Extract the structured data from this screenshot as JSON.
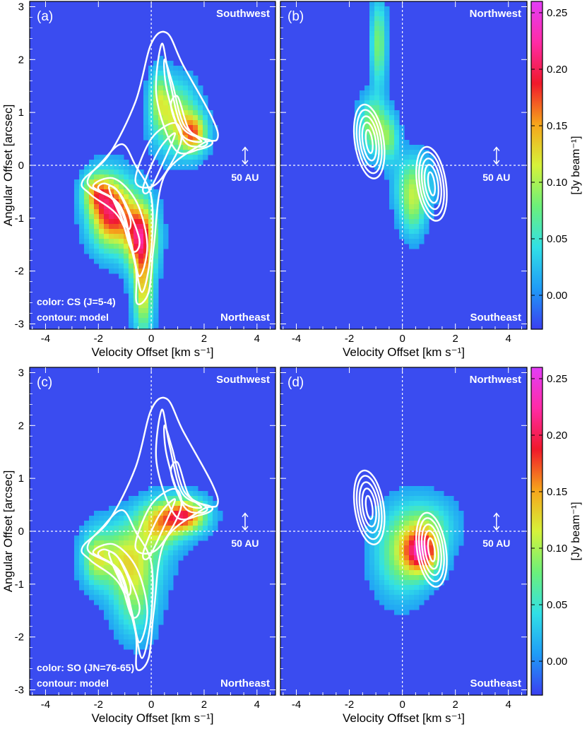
{
  "colors": {
    "background": "#3a4cf0",
    "contour": "#ffffff",
    "guide": "#ffffff",
    "colormap": [
      "#3a3ff0",
      "#1f9cf7",
      "#31e0e6",
      "#6cf07a",
      "#d6f23a",
      "#f6a51b",
      "#f0192b",
      "#ff2ba6",
      "#e23ef7"
    ]
  },
  "chart_data": [
    {
      "id": "a",
      "type": "heatmap",
      "panel_label": "(a)",
      "xlabel": "Velocity Offset [km s⁻¹]",
      "ylabel": "Angular Offset [arcsec]",
      "xlim": [
        -4.6,
        4.7
      ],
      "ylim": [
        -3.1,
        3.1
      ],
      "x_ticks": [
        "-4",
        "-2",
        "0",
        "2",
        "4"
      ],
      "y_ticks": [
        "3",
        "2",
        "1",
        "0",
        "-1",
        "-2",
        "-3"
      ],
      "top_right_label": "Southwest",
      "bottom_right_label": "Northeast",
      "scale_bar_label": "50 AU",
      "legend_lines": [
        "color: CS (J=5-4)",
        "contour: model"
      ],
      "emission": [
        {
          "v": -1.5,
          "a": -0.9,
          "sv": 0.55,
          "sa": 0.45,
          "amp": 0.2
        },
        {
          "v": -0.4,
          "a": -1.35,
          "sv": 0.4,
          "sa": 0.45,
          "amp": 0.19
        },
        {
          "v": -0.3,
          "a": -2.4,
          "sv": 0.25,
          "sa": 0.55,
          "amp": 0.12
        },
        {
          "v": -2.1,
          "a": -0.5,
          "sv": 0.35,
          "sa": 0.25,
          "amp": 0.1
        },
        {
          "v": 0.9,
          "a": 0.9,
          "sv": 0.55,
          "sa": 0.45,
          "amp": 0.11
        },
        {
          "v": 1.6,
          "a": 0.6,
          "sv": 0.35,
          "sa": 0.25,
          "amp": 0.14
        },
        {
          "v": 0.3,
          "a": 1.3,
          "sv": 0.25,
          "sa": 0.35,
          "amp": 0.07
        }
      ]
    },
    {
      "id": "b",
      "type": "heatmap",
      "panel_label": "(b)",
      "xlabel": "Velocity Offset [km s⁻¹]",
      "xlim": [
        -4.6,
        4.7
      ],
      "ylim": [
        -3.1,
        3.1
      ],
      "x_ticks": [
        "-4",
        "-2",
        "0",
        "2",
        "4"
      ],
      "top_right_label": "Northwest",
      "bottom_right_label": "Southeast",
      "scale_bar_label": "50 AU",
      "emission": [
        {
          "v": -0.9,
          "a": 2.3,
          "sv": 0.2,
          "sa": 0.55,
          "amp": 0.085
        },
        {
          "v": -1.1,
          "a": 0.75,
          "sv": 0.35,
          "sa": 0.35,
          "amp": 0.1
        },
        {
          "v": -0.5,
          "a": 0.5,
          "sv": 0.25,
          "sa": 0.3,
          "amp": 0.07
        },
        {
          "v": 0.4,
          "a": -0.4,
          "sv": 0.45,
          "sa": 0.4,
          "amp": 0.085
        },
        {
          "v": 0.4,
          "a": -0.9,
          "sv": 0.3,
          "sa": 0.35,
          "amp": 0.05
        }
      ]
    },
    {
      "id": "c",
      "type": "heatmap",
      "panel_label": "(c)",
      "xlabel": "Velocity Offset [km s⁻¹]",
      "ylabel": "Angular Offset [arcsec]",
      "xlim": [
        -4.6,
        4.7
      ],
      "ylim": [
        -3.1,
        3.1
      ],
      "x_ticks": [
        "-4",
        "-2",
        "0",
        "2",
        "4"
      ],
      "y_ticks": [
        "3",
        "2",
        "1",
        "0",
        "-1",
        "-2",
        "-3"
      ],
      "top_right_label": "Southwest",
      "bottom_right_label": "Northeast",
      "scale_bar_label": "50 AU",
      "legend_lines": [
        "color: SO (JN=76-65)",
        "contour: model"
      ],
      "emission": [
        {
          "v": 1.3,
          "a": 0.3,
          "sv": 0.55,
          "sa": 0.22,
          "amp": 0.17
        },
        {
          "v": 0.3,
          "a": 0.15,
          "sv": 0.6,
          "sa": 0.3,
          "amp": 0.12
        },
        {
          "v": -1.0,
          "a": -0.5,
          "sv": 0.9,
          "sa": 0.45,
          "amp": 0.11
        },
        {
          "v": -0.6,
          "a": -1.3,
          "sv": 0.55,
          "sa": 0.5,
          "amp": 0.07
        },
        {
          "v": -2.1,
          "a": -0.5,
          "sv": 0.3,
          "sa": 0.3,
          "amp": 0.07
        }
      ]
    },
    {
      "id": "d",
      "type": "heatmap",
      "panel_label": "(d)",
      "xlabel": "Velocity Offset [km s⁻¹]",
      "xlim": [
        -4.6,
        4.7
      ],
      "ylim": [
        -3.1,
        3.1
      ],
      "x_ticks": [
        "-4",
        "-2",
        "0",
        "2",
        "4"
      ],
      "top_right_label": "Northwest",
      "bottom_right_label": "Southeast",
      "scale_bar_label": "50 AU",
      "emission": [
        {
          "v": 0.75,
          "a": -0.4,
          "sv": 0.45,
          "sa": 0.28,
          "amp": 0.17
        },
        {
          "v": 0.0,
          "a": -0.4,
          "sv": 0.7,
          "sa": 0.55,
          "amp": 0.09
        },
        {
          "v": 1.0,
          "a": 0.1,
          "sv": 0.7,
          "sa": 0.35,
          "amp": 0.06
        }
      ]
    }
  ],
  "colorbars": [
    {
      "label": "[Jy beam⁻¹]",
      "ticks": [
        "0.25",
        "0.20",
        "0.15",
        "0.10",
        "0.05",
        "0.00"
      ],
      "range": [
        -0.03,
        0.26
      ]
    },
    {
      "label": "[Jy beam⁻¹]",
      "ticks": [
        "0.25",
        "0.20",
        "0.15",
        "0.10",
        "0.05",
        "0.00"
      ],
      "range": [
        -0.03,
        0.26
      ]
    }
  ]
}
